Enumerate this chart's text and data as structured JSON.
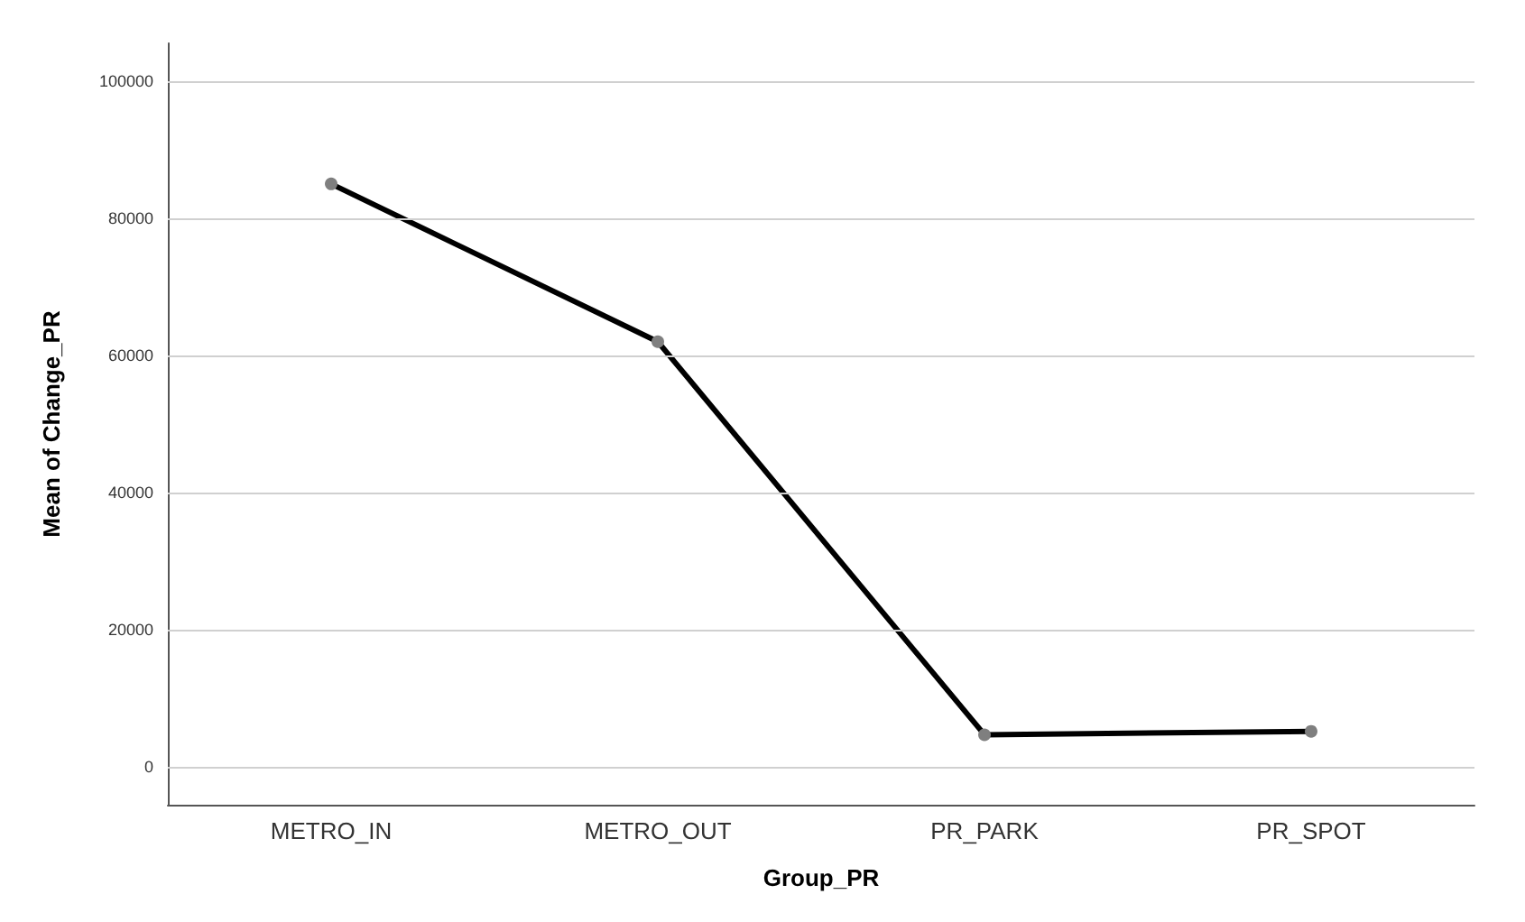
{
  "chart_data": {
    "type": "line",
    "xlabel": "Group_PR",
    "ylabel": "Mean of Change_PR",
    "categories": [
      "METRO_IN",
      "METRO_OUT",
      "PR_PARK",
      "PR_SPOT"
    ],
    "series": [
      {
        "color": "#000000",
        "values": [
          85000,
          62000,
          4700,
          5200
        ]
      }
    ],
    "ylim": [
      -5500,
      105500
    ],
    "yticks": [
      0,
      20000,
      40000,
      60000,
      80000,
      100000
    ],
    "grid": "y",
    "marker": "circle",
    "line_style": "solid"
  }
}
